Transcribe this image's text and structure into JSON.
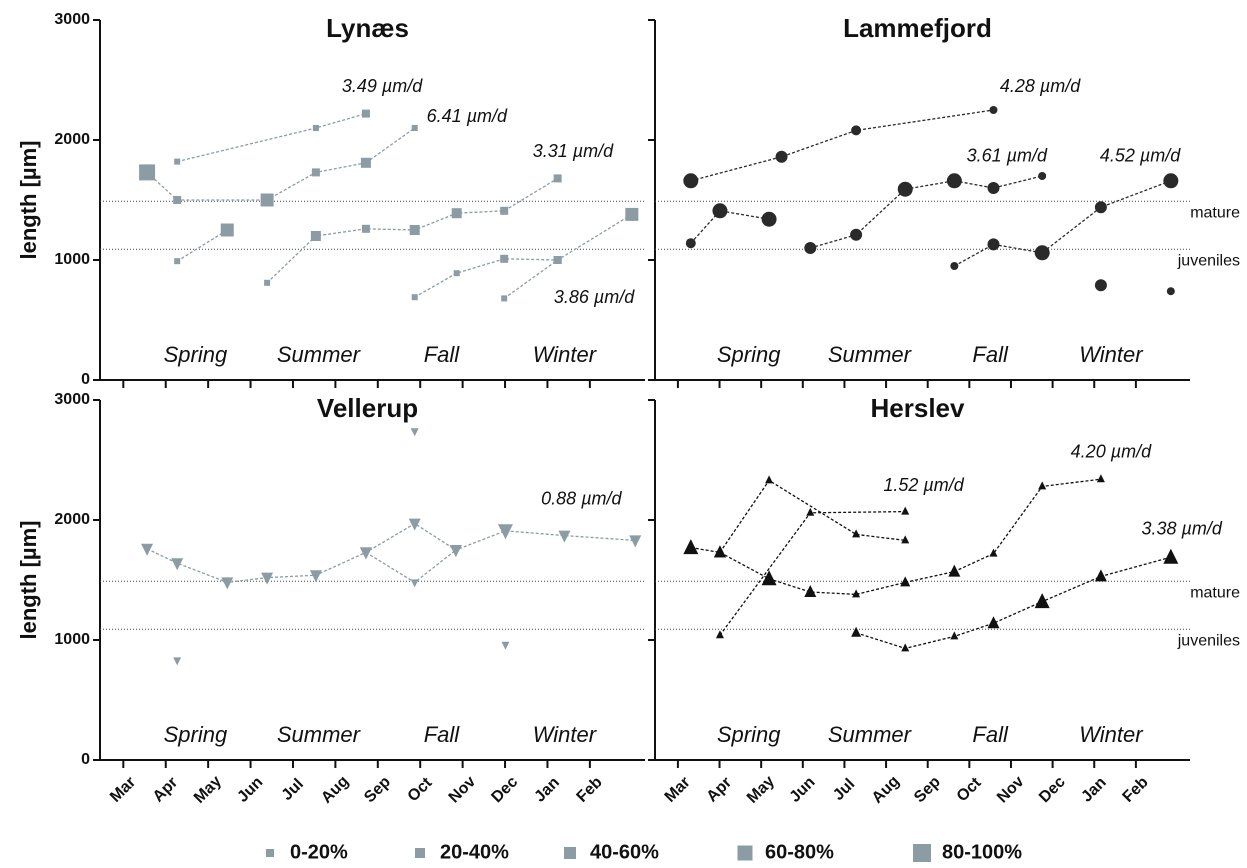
{
  "chart_data": [
    {
      "type": "scatter",
      "title": "Lynæs",
      "ylabel": "length [µm]",
      "marker": "square",
      "color": "#8c9ca4",
      "xlim": [
        -0.55,
        12.3
      ],
      "xticks": [
        0,
        1,
        2,
        3,
        4,
        5,
        6,
        7,
        8,
        9,
        10,
        11
      ],
      "ylim": [
        0,
        3000
      ],
      "yticks": [
        0,
        1000,
        2000,
        3000
      ],
      "hlines": [
        1490,
        1090
      ],
      "seasons": [
        "Spring",
        "Summer",
        "Fall",
        "Winter"
      ],
      "annotations": [
        "3.49 µm/d",
        "6.41 µm/d",
        "3.31 µm/d",
        "3.86 µm/d"
      ],
      "series": [
        {
          "x": [
            1.27,
            4.54,
            5.72
          ],
          "values": [
            1820,
            2100,
            2220
          ],
          "sizes": [
            0,
            0,
            1
          ]
        },
        {
          "x": [
            0.56,
            1.27,
            3.39,
            4.54,
            5.72
          ],
          "values": [
            1730,
            1500,
            1500,
            1730,
            1810
          ],
          "sizes": [
            4,
            1,
            3,
            1,
            2
          ]
        },
        {
          "x": [
            1.27,
            2.45
          ],
          "values": [
            990,
            1250
          ],
          "sizes": [
            0,
            3
          ]
        },
        {
          "x": [
            3.39,
            4.54,
            5.72,
            6.87,
            7.86,
            8.98,
            10.24
          ],
          "values": [
            810,
            1200,
            1260,
            1250,
            1390,
            1410,
            1680
          ],
          "sizes": [
            0,
            2,
            1,
            2,
            2,
            1,
            1
          ]
        },
        {
          "x": [
            5.72,
            6.87
          ],
          "values": [
            1810,
            2100
          ],
          "sizes": [
            1,
            0
          ]
        },
        {
          "x": [
            6.87,
            7.86,
            8.98,
            10.24
          ],
          "values": [
            690,
            890,
            1010,
            1000
          ],
          "sizes": [
            0,
            0,
            1,
            1
          ]
        },
        {
          "x": [
            8.98,
            10.24,
            11.99
          ],
          "values": [
            680,
            1000,
            1380
          ],
          "sizes": [
            0,
            1,
            3
          ]
        }
      ]
    },
    {
      "type": "scatter",
      "title": "Lammefjord",
      "marker": "circle",
      "color": "#2a2a2a",
      "xlim": [
        -0.55,
        12.3
      ],
      "xticks": [
        0,
        1,
        2,
        3,
        4,
        5,
        6,
        7,
        8,
        9,
        10,
        11
      ],
      "ylim": [
        0,
        3000
      ],
      "yticks": [
        0,
        1000,
        2000,
        3000
      ],
      "hlines": [
        {
          "value": 1490,
          "label": "mature"
        },
        {
          "value": 1090,
          "label": "juveniles"
        }
      ],
      "seasons": [
        "Spring",
        "Summer",
        "Fall",
        "Winter"
      ],
      "annotations": [
        "4.28 µm/d",
        "3.61 µm/d",
        "4.52 µm/d"
      ],
      "series": [
        {
          "x": [
            0.31,
            2.49,
            4.28,
            7.58
          ],
          "values": [
            1660,
            1860,
            2080,
            2250
          ],
          "sizes": [
            3,
            2,
            1,
            0
          ]
        },
        {
          "x": [
            0.31,
            1.01,
            2.19
          ],
          "values": [
            1140,
            1410,
            1340
          ],
          "sizes": [
            1,
            3,
            3
          ]
        },
        {
          "x": [
            3.18,
            4.28,
            5.46,
            6.64,
            7.58,
            8.75
          ],
          "values": [
            1100,
            1210,
            1590,
            1660,
            1600,
            1700
          ],
          "sizes": [
            2,
            2,
            3,
            3,
            2,
            0
          ]
        },
        {
          "x": [
            6.64,
            7.58,
            8.75,
            10.16,
            11.84
          ],
          "values": [
            950,
            1130,
            1060,
            1440,
            1660
          ],
          "sizes": [
            0,
            2,
            3,
            2,
            3
          ]
        },
        {
          "x": [
            10.16
          ],
          "values": [
            790
          ],
          "sizes": [
            2
          ]
        },
        {
          "x": [
            11.84
          ],
          "values": [
            740
          ],
          "sizes": [
            0
          ]
        }
      ]
    },
    {
      "type": "scatter",
      "title": "Vellerup",
      "ylabel": "length [µm]",
      "marker": "triangle-down",
      "color": "#8c9ca4",
      "xlim": [
        -0.55,
        12.3
      ],
      "xticks": [
        {
          "value": 0,
          "label": "Mar"
        },
        {
          "value": 1,
          "label": "Apr"
        },
        {
          "value": 2,
          "label": "May"
        },
        {
          "value": 3,
          "label": "Jun"
        },
        {
          "value": 4,
          "label": "Jul"
        },
        {
          "value": 5,
          "label": "Aug"
        },
        {
          "value": 6,
          "label": "Sep"
        },
        {
          "value": 7,
          "label": "Oct"
        },
        {
          "value": 8,
          "label": "Nov"
        },
        {
          "value": 9,
          "label": "Dec"
        },
        {
          "value": 10,
          "label": "Jan"
        },
        {
          "value": 11,
          "label": "Feb"
        }
      ],
      "ylim": [
        0,
        3000
      ],
      "yticks": [
        0,
        1000,
        2000,
        3000
      ],
      "hlines": [
        1490,
        1090
      ],
      "seasons": [
        "Spring",
        "Summer",
        "Fall",
        "Winter"
      ],
      "annotations": [
        "0.88 µm/d"
      ],
      "series": [
        {
          "x": [
            0.56,
            1.27,
            2.45,
            3.39,
            4.54,
            5.72,
            6.87,
            7.84,
            9.01,
            10.4,
            12.07
          ],
          "values": [
            1760,
            1640,
            1480,
            1520,
            1540,
            1730,
            1970,
            1750,
            1910,
            1870,
            1830
          ],
          "sizes": [
            2,
            2,
            2,
            2,
            2,
            2,
            2,
            2,
            3,
            2,
            2
          ]
        },
        {
          "x": [
            5.72,
            6.87,
            7.84
          ],
          "values": [
            1730,
            1480,
            1750
          ],
          "sizes": [
            2,
            0,
            2
          ]
        },
        {
          "x": [
            1.27
          ],
          "values": [
            830
          ],
          "sizes": [
            0
          ]
        },
        {
          "x": [
            6.87
          ],
          "values": [
            2740
          ],
          "sizes": [
            0
          ]
        },
        {
          "x": [
            9.01
          ],
          "values": [
            960
          ],
          "sizes": [
            0
          ]
        }
      ]
    },
    {
      "type": "scatter",
      "title": "Herslev",
      "marker": "triangle-up",
      "color": "#111111",
      "xlim": [
        -0.55,
        12.3
      ],
      "xticks": [
        {
          "value": 0,
          "label": "Mar"
        },
        {
          "value": 1,
          "label": "Apr"
        },
        {
          "value": 2,
          "label": "May"
        },
        {
          "value": 3,
          "label": "Jun"
        },
        {
          "value": 4,
          "label": "Jul"
        },
        {
          "value": 5,
          "label": "Aug"
        },
        {
          "value": 6,
          "label": "Sep"
        },
        {
          "value": 7,
          "label": "Oct"
        },
        {
          "value": 8,
          "label": "Nov"
        },
        {
          "value": 9,
          "label": "Dec"
        },
        {
          "value": 10,
          "label": "Jan"
        },
        {
          "value": 11,
          "label": "Feb"
        }
      ],
      "ylim": [
        0,
        3000
      ],
      "yticks": [
        0,
        1000,
        2000,
        3000
      ],
      "hlines": [
        {
          "value": 1490,
          "label": "mature"
        },
        {
          "value": 1090,
          "label": "juveniles"
        }
      ],
      "seasons": [
        "Spring",
        "Summer",
        "Fall",
        "Winter"
      ],
      "annotations": [
        "1.52 µm/d",
        "4.20 µm/d",
        "3.38 µm/d"
      ],
      "series": [
        {
          "x": [
            0.31,
            1.01,
            2.19,
            3.18,
            4.28,
            5.46,
            6.64,
            7.58,
            8.75,
            10.16
          ],
          "values": [
            1770,
            1730,
            1510,
            1400,
            1380,
            1480,
            1570,
            1720,
            2280,
            2340
          ],
          "sizes": [
            3,
            2,
            3,
            2,
            0,
            1,
            2,
            0,
            0,
            0
          ]
        },
        {
          "x": [
            1.01,
            2.19,
            4.28,
            5.46
          ],
          "values": [
            1730,
            2330,
            1880,
            1830
          ],
          "sizes": [
            2,
            0,
            0,
            0
          ]
        },
        {
          "x": [
            1.01,
            3.18,
            5.46
          ],
          "values": [
            1040,
            2060,
            2070
          ],
          "sizes": [
            0,
            0,
            0
          ]
        },
        {
          "x": [
            4.28,
            5.46,
            6.64,
            7.58,
            8.75,
            10.16,
            11.84
          ],
          "values": [
            1060,
            930,
            1030,
            1140,
            1320,
            1530,
            1690
          ],
          "sizes": [
            1,
            0,
            0,
            2,
            3,
            2,
            3
          ]
        }
      ]
    }
  ],
  "size_legend": {
    "labels": [
      "0-20%",
      "20-40%",
      "40-60%",
      "60-80%",
      "80-100%"
    ],
    "color": "#8c9ca4"
  }
}
